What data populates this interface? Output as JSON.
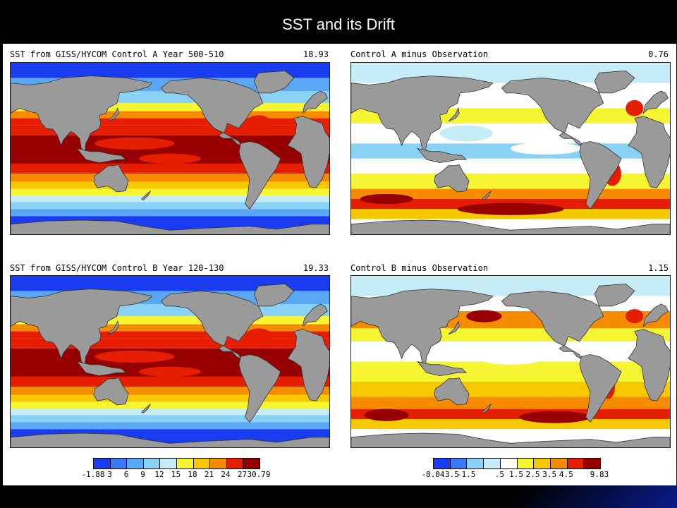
{
  "slide": {
    "title": "SST and its Drift"
  },
  "panels": [
    {
      "title": "SST from GISS/HYCOM Control A Year 500-510",
      "value": "18.93",
      "kind": "sst"
    },
    {
      "title": "Control A minus Observation",
      "value": "0.76",
      "kind": "diff"
    },
    {
      "title": "SST from GISS/HYCOM Control B Year 120-130",
      "value": "19.33",
      "kind": "sst"
    },
    {
      "title": "Control B minus Observation",
      "value": "1.15",
      "kind": "diff"
    }
  ],
  "colorbars": {
    "sst": {
      "labels": [
        "-1.88",
        "3",
        "6",
        "9",
        "12",
        "15",
        "18",
        "21",
        "24",
        "27",
        "30.79"
      ],
      "colors": [
        "#1a3cf0",
        "#3a78f5",
        "#5aa8f5",
        "#8ad2f5",
        "#c6ecf8",
        "#f5f532",
        "#f5c800",
        "#f58c00",
        "#e61e00",
        "#960000"
      ]
    },
    "diff": {
      "labels": [
        "-8.04",
        "-3.5",
        "-1.5",
        ".5",
        "1.5",
        "2.5",
        "3.5",
        "4.5",
        "9.83"
      ],
      "colors": [
        "#1a3cf0",
        "#3a78f5",
        "#8ad2f5",
        "#c6ecf8",
        "#ffffff",
        "#f5f532",
        "#f5c800",
        "#f58c00",
        "#e61e00",
        "#960000"
      ]
    }
  },
  "colors": {
    "land": "#9a9a9a",
    "ocean_white": "#ffffff"
  }
}
